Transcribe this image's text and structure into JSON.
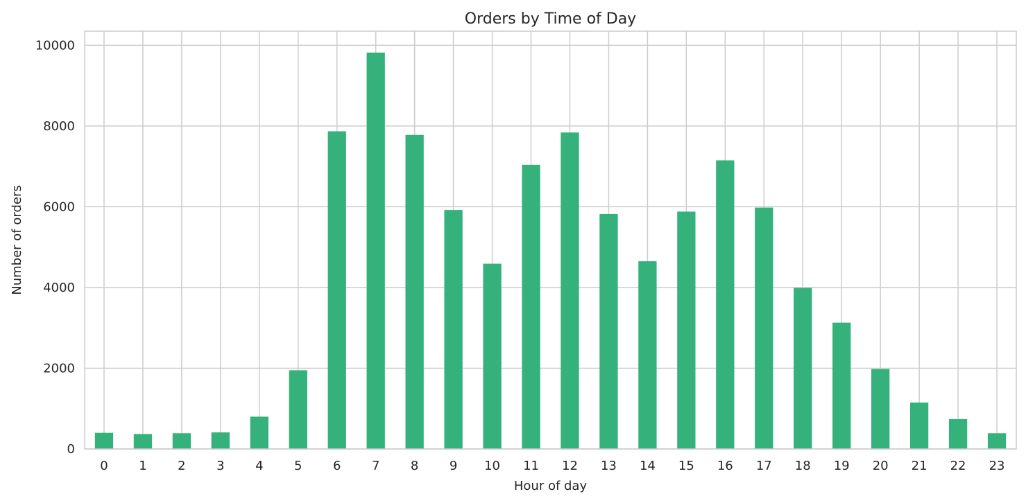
{
  "chart_data": {
    "type": "bar",
    "title": "Orders by Time of Day",
    "xlabel": "Hour of day",
    "ylabel": "Number of orders",
    "categories": [
      "0",
      "1",
      "2",
      "3",
      "4",
      "5",
      "6",
      "7",
      "8",
      "9",
      "10",
      "11",
      "12",
      "13",
      "14",
      "15",
      "16",
      "17",
      "18",
      "19",
      "20",
      "21",
      "22",
      "23"
    ],
    "values": [
      400,
      370,
      390,
      410,
      800,
      1950,
      7870,
      9820,
      7780,
      5920,
      4590,
      7040,
      7840,
      5820,
      4650,
      5880,
      7150,
      5980,
      3990,
      3130,
      1980,
      1150,
      740,
      390
    ],
    "yticks": [
      0,
      2000,
      4000,
      6000,
      8000,
      10000
    ],
    "ylim": [
      0,
      10350
    ],
    "grid": true,
    "legend": "none",
    "colors": {
      "bar": "#35b27b",
      "grid": "#cccccc",
      "text": "#262626",
      "background": "#ffffff"
    }
  }
}
